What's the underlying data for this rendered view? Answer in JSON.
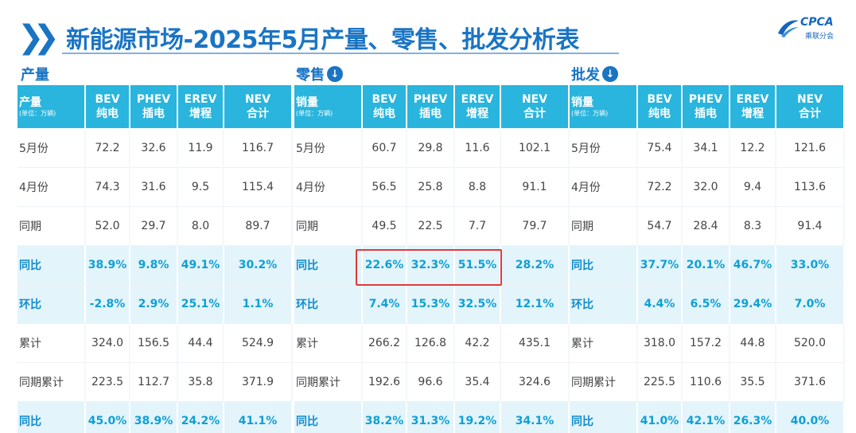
{
  "title": "新能源市场-2025年5月产量、零售、批发分析表",
  "logo": {
    "text": "CPCA",
    "sub": "乘联分会"
  },
  "columns": [
    {
      "line1": "BEV",
      "line2": "纯电"
    },
    {
      "line1": "PHEV",
      "line2": "插电"
    },
    {
      "line1": "EREV",
      "line2": "增程"
    },
    {
      "line1": "NEV",
      "line2": "合计"
    }
  ],
  "panels": [
    {
      "label": "产量",
      "header_label": "产量",
      "unit": "(单位：万辆)",
      "rows": [
        {
          "label": "5月份",
          "cells": [
            "72.2",
            "32.6",
            "11.9",
            "116.7"
          ],
          "style": "white"
        },
        {
          "label": "4月份",
          "cells": [
            "74.3",
            "31.6",
            "9.5",
            "115.4"
          ],
          "style": "white"
        },
        {
          "label": "同期",
          "cells": [
            "52.0",
            "29.7",
            "8.0",
            "89.7"
          ],
          "style": "white"
        },
        {
          "label": "同比",
          "cells": [
            "38.9%",
            "9.8%",
            "49.1%",
            "30.2%"
          ],
          "style": "blue"
        },
        {
          "label": "环比",
          "cells": [
            "-2.8%",
            "2.9%",
            "25.1%",
            "1.1%"
          ],
          "style": "blue"
        },
        {
          "label": "累计",
          "cells": [
            "324.0",
            "156.5",
            "44.4",
            "524.9"
          ],
          "style": "white"
        },
        {
          "label": "同期累计",
          "cells": [
            "223.5",
            "112.7",
            "35.8",
            "371.9"
          ],
          "style": "white"
        },
        {
          "label": "同比",
          "cells": [
            "45.0%",
            "38.9%",
            "24.2%",
            "41.1%"
          ],
          "style": "blue"
        }
      ]
    },
    {
      "label": "零售",
      "header_label": "销量",
      "unit": "(单位：万辆)",
      "rows": [
        {
          "label": "5月份",
          "cells": [
            "60.7",
            "29.8",
            "11.6",
            "102.1"
          ],
          "style": "white"
        },
        {
          "label": "4月份",
          "cells": [
            "56.5",
            "25.8",
            "8.8",
            "91.1"
          ],
          "style": "white"
        },
        {
          "label": "同期",
          "cells": [
            "49.5",
            "22.5",
            "7.7",
            "79.7"
          ],
          "style": "white"
        },
        {
          "label": "同比",
          "cells": [
            "22.6%",
            "32.3%",
            "51.5%",
            "28.2%"
          ],
          "style": "blue"
        },
        {
          "label": "环比",
          "cells": [
            "7.4%",
            "15.3%",
            "32.5%",
            "12.1%"
          ],
          "style": "blue"
        },
        {
          "label": "累计",
          "cells": [
            "266.2",
            "126.8",
            "42.2",
            "435.1"
          ],
          "style": "white"
        },
        {
          "label": "同期累计",
          "cells": [
            "192.6",
            "96.6",
            "35.4",
            "324.6"
          ],
          "style": "white"
        },
        {
          "label": "同比",
          "cells": [
            "38.2%",
            "31.3%",
            "19.2%",
            "34.1%"
          ],
          "style": "blue"
        }
      ]
    },
    {
      "label": "批发",
      "header_label": "销量",
      "unit": "(单位：万辆)",
      "rows": [
        {
          "label": "5月份",
          "cells": [
            "75.4",
            "34.1",
            "12.2",
            "121.6"
          ],
          "style": "white"
        },
        {
          "label": "4月份",
          "cells": [
            "72.2",
            "32.0",
            "9.4",
            "113.6"
          ],
          "style": "white"
        },
        {
          "label": "同期",
          "cells": [
            "54.7",
            "28.4",
            "8.3",
            "91.4"
          ],
          "style": "white"
        },
        {
          "label": "同比",
          "cells": [
            "37.7%",
            "20.1%",
            "46.7%",
            "33.0%"
          ],
          "style": "blue"
        },
        {
          "label": "环比",
          "cells": [
            "4.4%",
            "6.5%",
            "29.4%",
            "7.0%"
          ],
          "style": "blue"
        },
        {
          "label": "累计",
          "cells": [
            "318.0",
            "157.2",
            "44.8",
            "520.0"
          ],
          "style": "white"
        },
        {
          "label": "同期累计",
          "cells": [
            "225.5",
            "110.6",
            "35.5",
            "371.6"
          ],
          "style": "white"
        },
        {
          "label": "同比",
          "cells": [
            "41.0%",
            "42.1%",
            "26.3%",
            "40.0%"
          ],
          "style": "blue"
        }
      ]
    }
  ],
  "colors": {
    "accent": "#1a74c4",
    "header_bg": "#29b5dd",
    "highlight_row_bg": "#e3f4fb",
    "highlight_text": "#0fa0d4",
    "callout_border": "#e03b3b"
  }
}
